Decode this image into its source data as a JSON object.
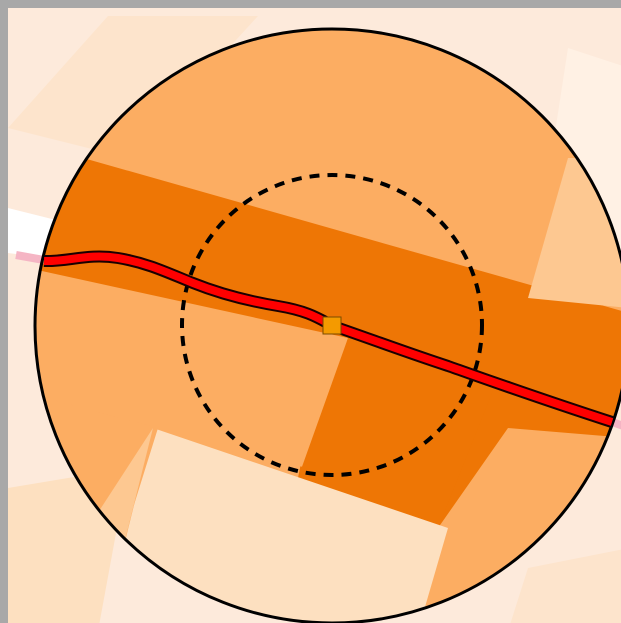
{
  "map": {
    "colors": {
      "frame": "#a8a8a8",
      "background": "#fdeadb",
      "tile_lightest": "#fff3e8",
      "tile_light": "#fde0c0",
      "tile_medium": "#fcad62",
      "tile_dark": "#ee7605",
      "road_outline": "#1a0000",
      "road_fill": "#ff0000",
      "road_outside": "#f5b5c4",
      "outer_circle": "#000000",
      "inner_circle": "#000000",
      "center_marker": "#f49a00"
    },
    "layers": [
      "density-tiles",
      "buffer-circle",
      "inner-radius-circle",
      "route-line",
      "center-marker"
    ],
    "center_marker_icon": "square-marker-icon"
  }
}
